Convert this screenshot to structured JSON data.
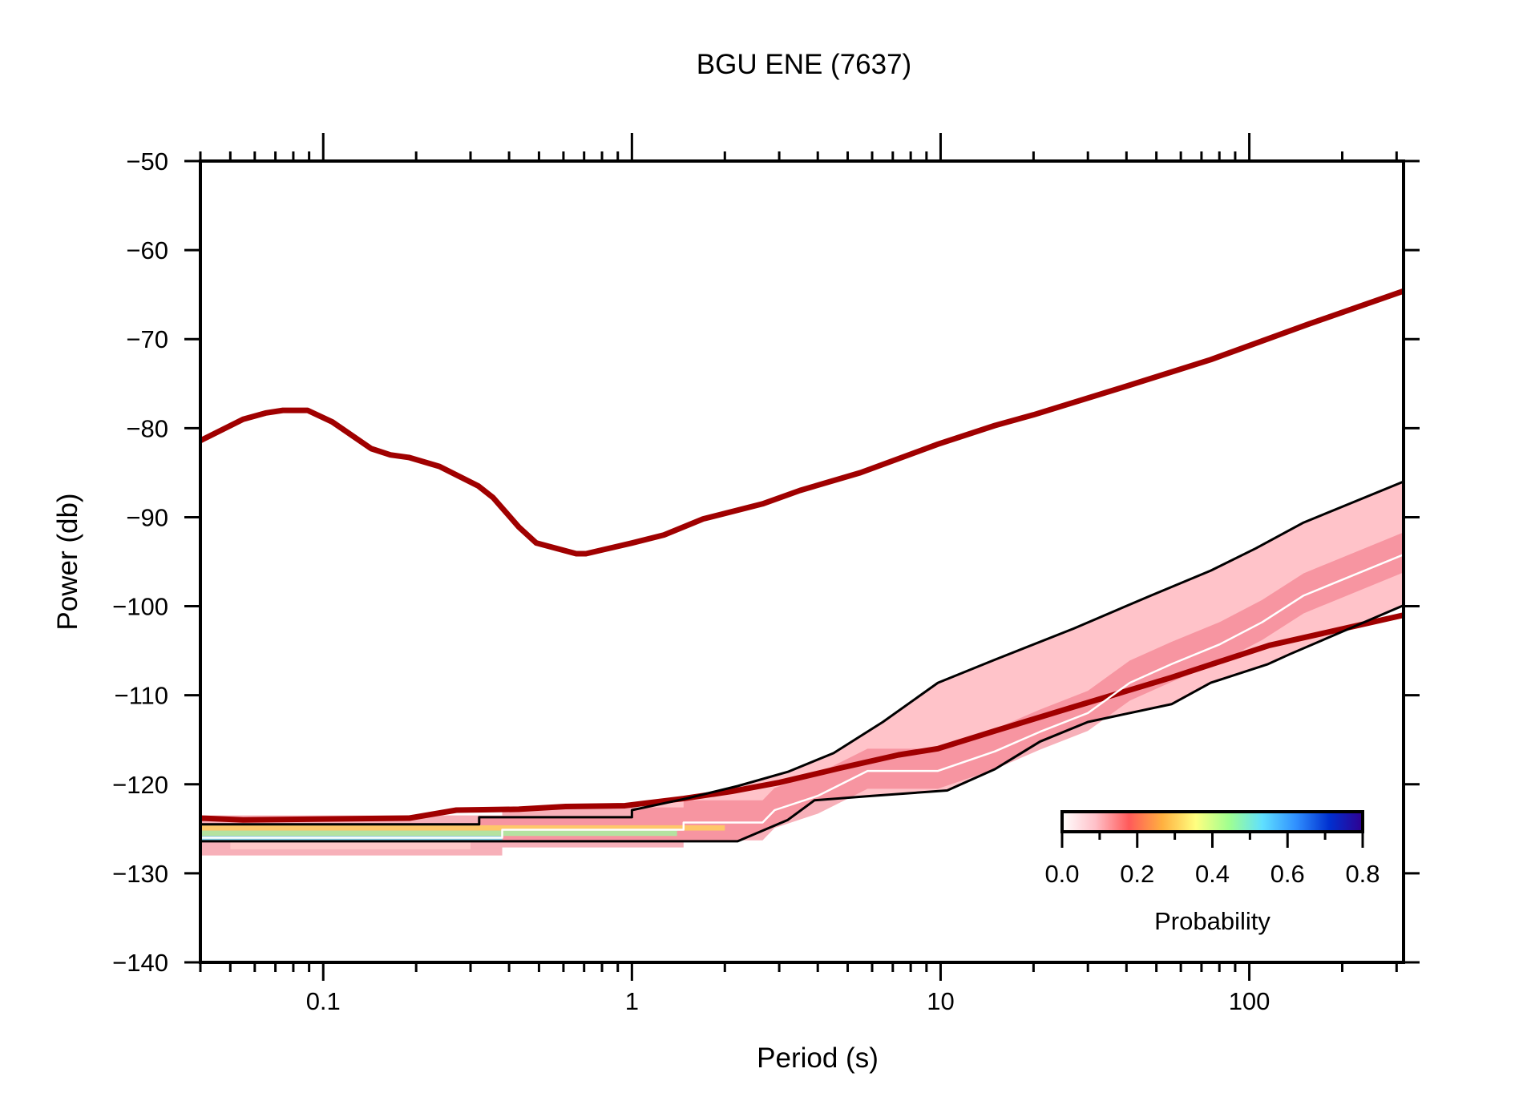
{
  "chart_data": {
    "type": "heatmap",
    "title": "BGU ENE (7637)",
    "xlabel": "Period (s)",
    "ylabel": "Power (db)",
    "xscale": "log",
    "xlim": [
      0.04,
      316
    ],
    "ylim": [
      -140,
      -50
    ],
    "xticks": [
      {
        "value": 0.1,
        "label": "0.1"
      },
      {
        "value": 1,
        "label": "1"
      },
      {
        "value": 10,
        "label": "10"
      },
      {
        "value": 100,
        "label": "100"
      }
    ],
    "yticks": [
      {
        "value": -50,
        "label": "−50"
      },
      {
        "value": -60,
        "label": "−60"
      },
      {
        "value": -70,
        "label": "−70"
      },
      {
        "value": -80,
        "label": "−80"
      },
      {
        "value": -90,
        "label": "−90"
      },
      {
        "value": -100,
        "label": "−100"
      },
      {
        "value": -110,
        "label": "−110"
      },
      {
        "value": -120,
        "label": "−120"
      },
      {
        "value": -130,
        "label": "−130"
      },
      {
        "value": -140,
        "label": "−140"
      }
    ],
    "grid": false,
    "colorbar": {
      "label": "Probability",
      "range": [
        0.0,
        0.8
      ],
      "ticks": [
        "0.0",
        "0.2",
        "0.4",
        "0.6",
        "0.8"
      ],
      "colors": [
        "#ffffff",
        "#ffc0c8",
        "#ff5a5a",
        "#ffb040",
        "#ffff80",
        "#a0ff90",
        "#60e0ff",
        "#3090ff",
        "#0030d0",
        "#300090"
      ],
      "placement": "bottom-right"
    },
    "series": [
      {
        "role": "high-noise-model",
        "color": "#a00000",
        "x": [
          0.04,
          0.055,
          0.065,
          0.074,
          0.089,
          0.107,
          0.143,
          0.165,
          0.19,
          0.238,
          0.318,
          0.355,
          0.43,
          0.49,
          0.66,
          0.71,
          1,
          1.27,
          1.7,
          2.65,
          3.5,
          5.5,
          9.8,
          15,
          20,
          39,
          75,
          156,
          316
        ],
        "y": [
          -81.4,
          -79.0,
          -78.3,
          -78.0,
          -78.0,
          -79.3,
          -82.3,
          -83.0,
          -83.3,
          -84.3,
          -86.5,
          -87.8,
          -91.1,
          -92.9,
          -94.1,
          -94.1,
          -92.9,
          -92.0,
          -90.2,
          -88.5,
          -87.0,
          -85.0,
          -81.8,
          -79.7,
          -78.5,
          -75.4,
          -72.3,
          -68.3,
          -64.6
        ]
      },
      {
        "role": "low-noise-model",
        "color": "#a00000",
        "x": [
          0.04,
          0.055,
          0.1,
          0.19,
          0.27,
          0.43,
          0.61,
          0.95,
          1.47,
          2.1,
          3.0,
          4.7,
          7.3,
          9.8,
          15,
          27,
          56,
          116,
          316
        ],
        "y": [
          -123.8,
          -124.0,
          -123.9,
          -123.8,
          -122.9,
          -122.8,
          -122.5,
          -122.4,
          -121.6,
          -120.8,
          -119.8,
          -118.2,
          -116.7,
          -116.0,
          -114.0,
          -111.3,
          -108.0,
          -104.4,
          -101.0
        ]
      },
      {
        "role": "upper-percentile",
        "color": "#000000",
        "x": [
          0.04,
          0.32,
          0.32,
          1.0,
          1.0,
          1.5,
          2.2,
          3.2,
          4.5,
          6.5,
          9.8,
          15,
          27,
          48,
          75,
          105,
          150,
          316
        ],
        "y": [
          -124.5,
          -124.5,
          -123.7,
          -123.7,
          -122.9,
          -121.6,
          -120.2,
          -118.6,
          -116.5,
          -113.0,
          -108.6,
          -106.0,
          -102.5,
          -98.8,
          -96.0,
          -93.5,
          -90.6,
          -86.0
        ]
      },
      {
        "role": "lower-percentile",
        "color": "#000000",
        "x": [
          0.04,
          2.2,
          3.2,
          3.9,
          6.0,
          10.5,
          15,
          21,
          30,
          56,
          75,
          115,
          135,
          316
        ],
        "y": [
          -126.4,
          -126.4,
          -124.0,
          -121.8,
          -121.3,
          -120.7,
          -118.3,
          -115.2,
          -113.0,
          -111.0,
          -108.6,
          -106.5,
          -105.4,
          -99.9
        ]
      },
      {
        "role": "mode",
        "color": "#ffffff",
        "x": [
          0.04,
          0.38,
          0.38,
          1.47,
          1.47,
          2.65,
          2.9,
          4.0,
          5.8,
          9.8,
          15,
          21,
          30,
          41,
          56,
          80,
          110,
          150,
          316
        ],
        "y": [
          -126.0,
          -126.0,
          -125.1,
          -125.1,
          -124.3,
          -124.3,
          -122.9,
          -121.3,
          -118.5,
          -118.5,
          -116.3,
          -114.1,
          -112.0,
          -108.6,
          -106.5,
          -104.3,
          -101.8,
          -98.8,
          -94.2
        ]
      }
    ]
  }
}
